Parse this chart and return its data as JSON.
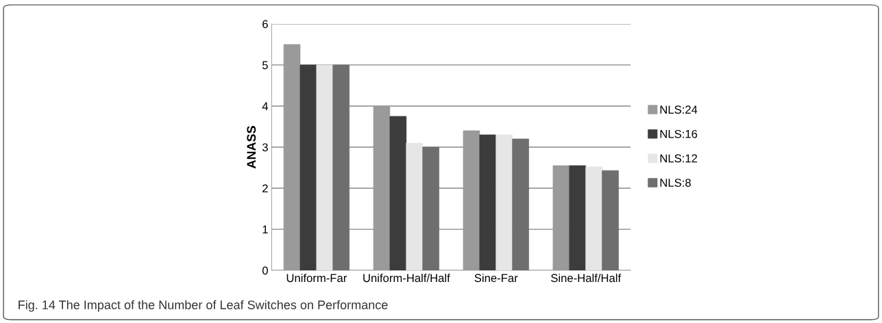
{
  "chart_data": {
    "type": "bar",
    "ylabel": "ANASS",
    "categories": [
      "Uniform-Far",
      "Uniform-Half/Half",
      "Sine-Far",
      "Sine-Half/Half"
    ],
    "series": [
      {
        "name": "NLS:24",
        "color": "#9a9a9a",
        "values": [
          5.5,
          4.0,
          3.4,
          2.55
        ]
      },
      {
        "name": "NLS:16",
        "color": "#3c3c3c",
        "values": [
          5.0,
          3.75,
          3.3,
          2.55
        ]
      },
      {
        "name": "NLS:12",
        "color": "#e6e6e6",
        "values": [
          5.0,
          3.1,
          3.3,
          2.52
        ]
      },
      {
        "name": "NLS:8",
        "color": "#6e6e6e",
        "values": [
          5.0,
          3.0,
          3.2,
          2.43
        ]
      }
    ],
    "ylim": [
      0,
      6
    ],
    "yticks": [
      0,
      1,
      2,
      3,
      4,
      5,
      6
    ],
    "grid": "y",
    "legend": "right",
    "annotations": [
      "Fig. 14 The Impact of the Number of Leaf Switches on Performance"
    ]
  }
}
